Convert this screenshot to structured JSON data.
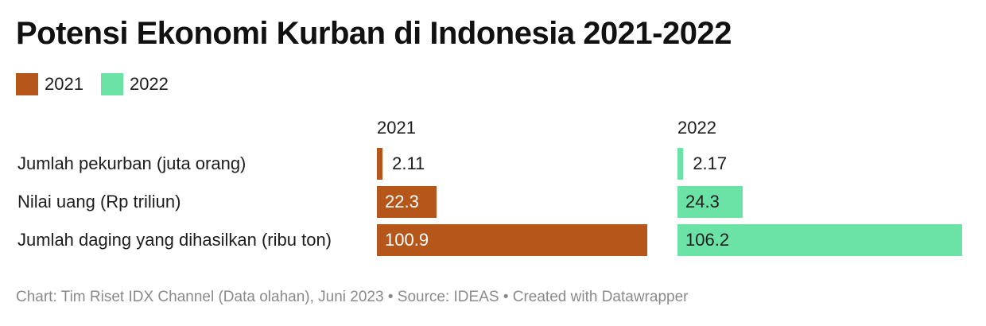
{
  "header": {
    "title": "Potensi Ekonomi Kurban di Indonesia 2021-2022"
  },
  "legend": [
    {
      "label": "2021",
      "color": "#b5561a"
    },
    {
      "label": "2022",
      "color": "#6be3a6"
    }
  ],
  "footer": {
    "credit": "Chart: Tim Riset IDX Channel (Data olahan), Juni 2023 • Source: IDEAS • Created with Datawrapper"
  },
  "chart_data": {
    "type": "bar",
    "title": "Potensi Ekonomi Kurban di Indonesia 2021-2022",
    "categories": [
      "Jumlah pekurban (juta orang)",
      "Nilai uang (Rp triliun)",
      "Jumlah daging yang dihasilkan (ribu ton)"
    ],
    "series": [
      {
        "name": "2021",
        "color": "#b5561a",
        "values": [
          2.11,
          22.3,
          100.9
        ],
        "labels": [
          "2.11",
          "22.3",
          "100.9"
        ]
      },
      {
        "name": "2022",
        "color": "#6be3a6",
        "values": [
          2.17,
          24.3,
          106.2
        ],
        "labels": [
          "2.17",
          "24.3",
          "106.2"
        ]
      }
    ],
    "layout": "small-multiples-horizontal",
    "grid": false,
    "legend_position": "top-left"
  }
}
